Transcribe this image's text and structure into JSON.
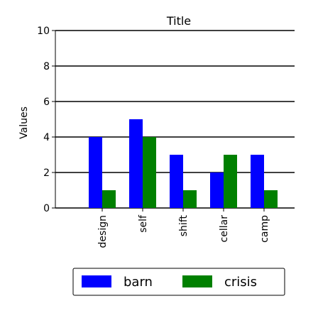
{
  "chart_data": {
    "type": "bar",
    "title": "Title",
    "xlabel": "",
    "ylabel": "Values",
    "ylim": [
      0,
      10
    ],
    "yticks": [
      0,
      2,
      4,
      6,
      8,
      10
    ],
    "grid": "horizontal",
    "legend_position": "bottom",
    "categories": [
      "design",
      "self",
      "shift",
      "cellar",
      "camp"
    ],
    "series": [
      {
        "name": "barn",
        "color": "#0000ff",
        "values": [
          4,
          5,
          3,
          2,
          3
        ]
      },
      {
        "name": "crisis",
        "color": "#008000",
        "values": [
          1,
          4,
          1,
          3,
          1
        ]
      }
    ]
  }
}
